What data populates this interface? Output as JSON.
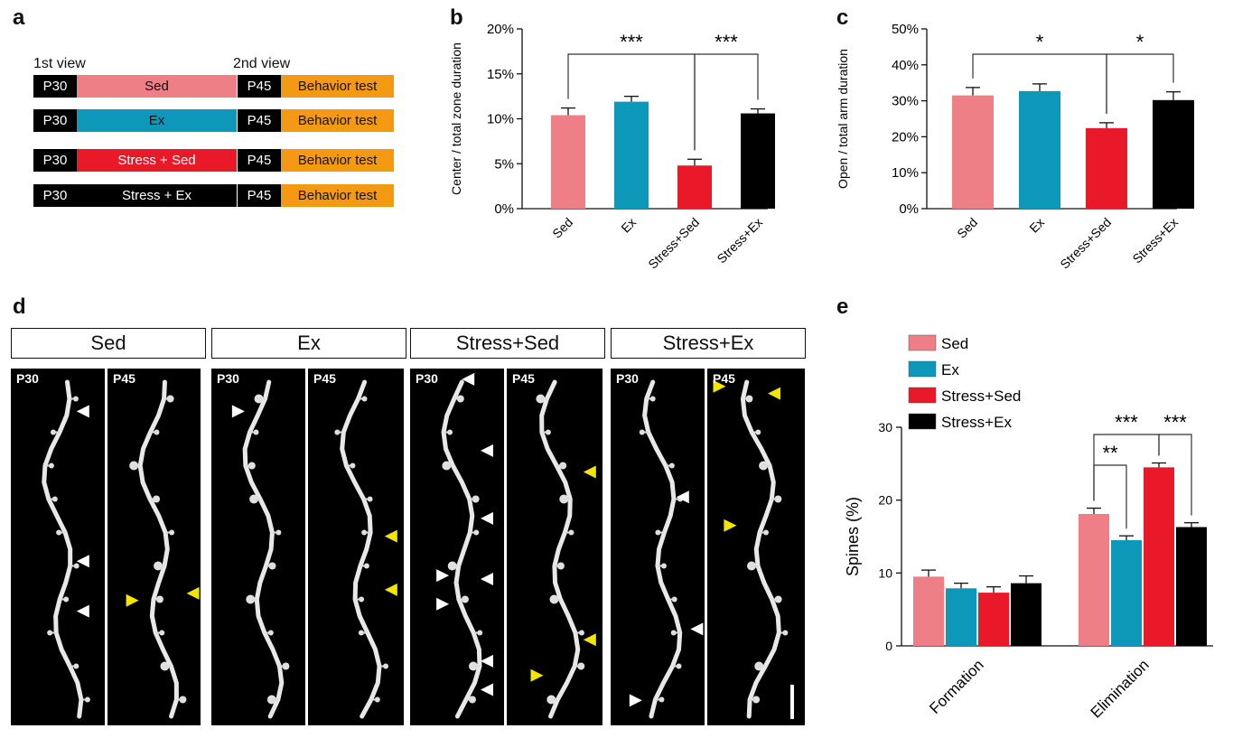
{
  "panels": {
    "a": "a",
    "b": "b",
    "c": "c",
    "d": "d",
    "e": "e"
  },
  "timeline": {
    "view1": "1st view",
    "view2": "2nd view",
    "rows": [
      {
        "start": "P30",
        "condition": "Sed",
        "end": "P45",
        "test": "Behavior test",
        "color": "#ef7f86",
        "text_color": "#111111"
      },
      {
        "start": "P30",
        "condition": "Ex",
        "end": "P45",
        "test": "Behavior test",
        "color": "#0d97b8",
        "text_color": "#111111"
      },
      {
        "start": "P30",
        "condition": "Stress + Sed",
        "end": "P45",
        "test": "Behavior test",
        "color": "#e9192a",
        "text_color": "#ffffff"
      },
      {
        "start": "P30",
        "condition": "Stress + Ex",
        "end": "P45",
        "test": "Behavior test",
        "color": "#000000",
        "text_color": "#ffffff"
      }
    ]
  },
  "micrographs": {
    "groups": [
      "Sed",
      "Ex",
      "Stress+Sed",
      "Stress+Ex"
    ],
    "labels": [
      "P30",
      "P45",
      "P30",
      "P45",
      "P30",
      "P45",
      "P30",
      "P45"
    ]
  },
  "colors": {
    "sed": "#ef7f86",
    "ex": "#0d97b8",
    "stress_sed": "#e9192a",
    "stress_ex": "#000000",
    "orange": "#f39a12",
    "arrow_white": "#ffffff",
    "arrow_yellow": "#f2e500"
  },
  "chart_data": [
    {
      "id": "b",
      "type": "bar",
      "ylabel": "Center / total zone duration",
      "categories": [
        "Sed",
        "Ex",
        "Stress+Sed",
        "Stress+Ex"
      ],
      "values": [
        10.4,
        11.9,
        4.8,
        10.6
      ],
      "errors": [
        0.8,
        0.6,
        0.7,
        0.5
      ],
      "ylim": [
        0,
        20
      ],
      "yticks": [
        "0%",
        "5%",
        "10%",
        "15%",
        "20%"
      ],
      "significance": [
        {
          "from": 0,
          "to": 2,
          "label": "***"
        },
        {
          "from": 2,
          "to": 3,
          "label": "***"
        }
      ]
    },
    {
      "id": "c",
      "type": "bar",
      "ylabel": "Open / total arm duration",
      "categories": [
        "Sed",
        "Ex",
        "Stress+Sed",
        "Stress+Ex"
      ],
      "values": [
        31.5,
        32.7,
        22.4,
        30.2
      ],
      "errors": [
        2.2,
        2.0,
        1.5,
        2.3
      ],
      "ylim": [
        0,
        50
      ],
      "yticks": [
        "0%",
        "10%",
        "20%",
        "30%",
        "40%",
        "50%"
      ],
      "significance": [
        {
          "from": 0,
          "to": 2,
          "label": "*"
        },
        {
          "from": 2,
          "to": 3,
          "label": "*"
        }
      ]
    },
    {
      "id": "e",
      "type": "bar",
      "ylabel": "Spines (%)",
      "categories": [
        "Formation",
        "Elimination"
      ],
      "series": [
        {
          "name": "Sed",
          "values": [
            9.5,
            18.1
          ],
          "errors": [
            0.9,
            0.8
          ]
        },
        {
          "name": "Ex",
          "values": [
            7.9,
            14.5
          ],
          "errors": [
            0.7,
            0.6
          ]
        },
        {
          "name": "Stress+Sed",
          "values": [
            7.3,
            24.5
          ],
          "errors": [
            0.8,
            0.6
          ]
        },
        {
          "name": "Stress+Ex",
          "values": [
            8.6,
            16.3
          ],
          "errors": [
            1.0,
            0.6
          ]
        }
      ],
      "ylim": [
        0,
        30
      ],
      "yticks": [
        "0",
        "10",
        "20",
        "30"
      ],
      "significance": [
        {
          "group": 1,
          "from": 0,
          "to": 1,
          "label": "**"
        },
        {
          "group": 1,
          "from": 0,
          "to": 2,
          "label": "***"
        },
        {
          "group": 1,
          "from": 2,
          "to": 3,
          "label": "***"
        }
      ]
    }
  ]
}
